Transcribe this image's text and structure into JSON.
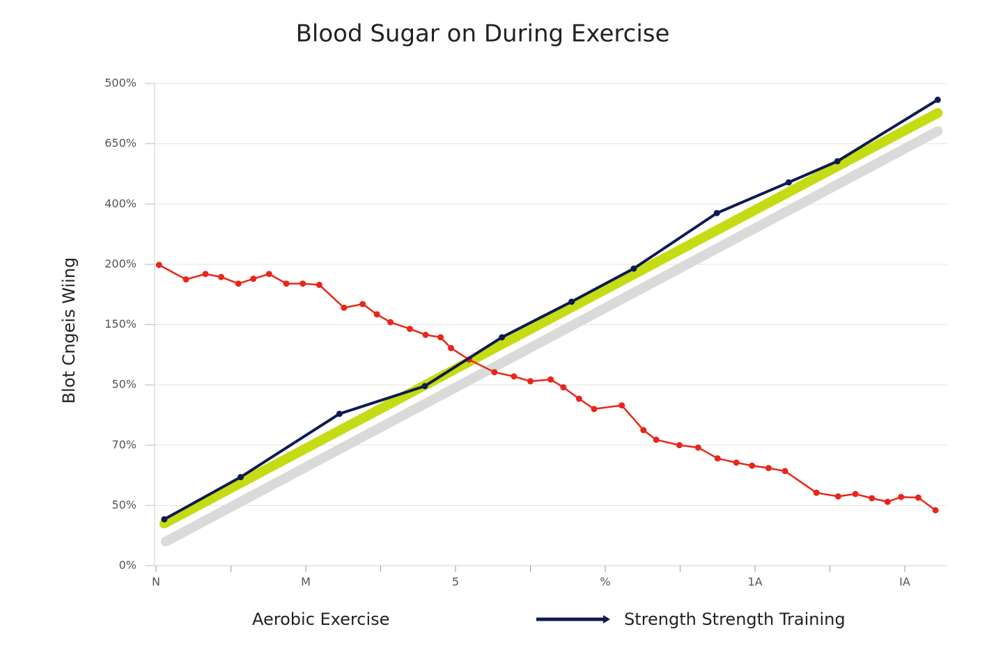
{
  "chart_data": {
    "type": "line",
    "title": "Blood Sugar on During Exercise",
    "y_label": "Blot Cngeis Wiing",
    "xlim": [
      0,
      10.6
    ],
    "xticks": [
      0,
      1,
      2,
      3,
      4,
      5,
      6,
      7,
      8,
      9,
      10
    ],
    "xtick_labels": [
      "N",
      null,
      "M",
      null,
      "5",
      null,
      "%",
      null,
      "1A",
      null,
      "IA"
    ],
    "ylim": [
      0,
      8
    ],
    "yticks": [
      {
        "value": 0,
        "label": "0%"
      },
      {
        "value": 1,
        "label": "50%"
      },
      {
        "value": 2,
        "label": "70%"
      },
      {
        "value": 3,
        "label": "50%"
      },
      {
        "value": 4,
        "label": "150%"
      },
      {
        "value": 5,
        "label": "200%"
      },
      {
        "value": 6,
        "label": "400%"
      },
      {
        "value": 7,
        "label": "650%"
      },
      {
        "value": 8,
        "label": "500%"
      }
    ],
    "grid": true,
    "series": [
      {
        "color": "#dadada",
        "line_width": 14,
        "markers": false,
        "x": [
          0.13,
          10.44
        ],
        "values": [
          0.4,
          7.21
        ]
      },
      {
        "color": "#c5dc14",
        "line_width": 14,
        "markers": false,
        "x": [
          0.11,
          10.44
        ],
        "values": [
          0.7,
          7.51
        ]
      },
      {
        "name": "Aerobic Exercise",
        "color": "#e8261a",
        "line_width": 2.5,
        "markers": true,
        "legend_symbol": "none",
        "x": [
          0.04,
          0.4,
          0.66,
          0.87,
          1.1,
          1.3,
          1.51,
          1.74,
          1.96,
          2.18,
          2.51,
          2.76,
          2.95,
          3.13,
          3.39,
          3.6,
          3.8,
          3.94,
          4.18,
          4.52,
          4.78,
          5.0,
          5.27,
          5.44,
          5.65,
          5.85,
          6.22,
          6.51,
          6.68,
          6.99,
          7.24,
          7.5,
          7.75,
          7.96,
          8.18,
          8.4,
          8.82,
          9.11,
          9.34,
          9.56,
          9.77,
          9.95,
          10.18,
          10.41
        ],
        "values": [
          4.99,
          4.75,
          4.84,
          4.79,
          4.68,
          4.76,
          4.84,
          4.68,
          4.68,
          4.66,
          4.28,
          4.34,
          4.17,
          4.04,
          3.93,
          3.83,
          3.79,
          3.61,
          3.42,
          3.21,
          3.14,
          3.06,
          3.09,
          2.96,
          2.77,
          2.6,
          2.66,
          2.25,
          2.09,
          2.0,
          1.96,
          1.78,
          1.71,
          1.66,
          1.62,
          1.57,
          1.21,
          1.15,
          1.19,
          1.12,
          1.06,
          1.14,
          1.13,
          0.92
        ]
      },
      {
        "name": "Strength Strength Training",
        "color": "#0e1a52",
        "line_width": 4,
        "markers": true,
        "legend_symbol": "arrow",
        "x": [
          0.11,
          1.13,
          2.45,
          3.59,
          4.62,
          5.55,
          6.38,
          7.49,
          8.45,
          9.1,
          10.44
        ],
        "values": [
          0.77,
          1.47,
          2.52,
          2.98,
          3.79,
          4.38,
          4.93,
          5.85,
          6.36,
          6.71,
          7.73
        ]
      }
    ]
  }
}
